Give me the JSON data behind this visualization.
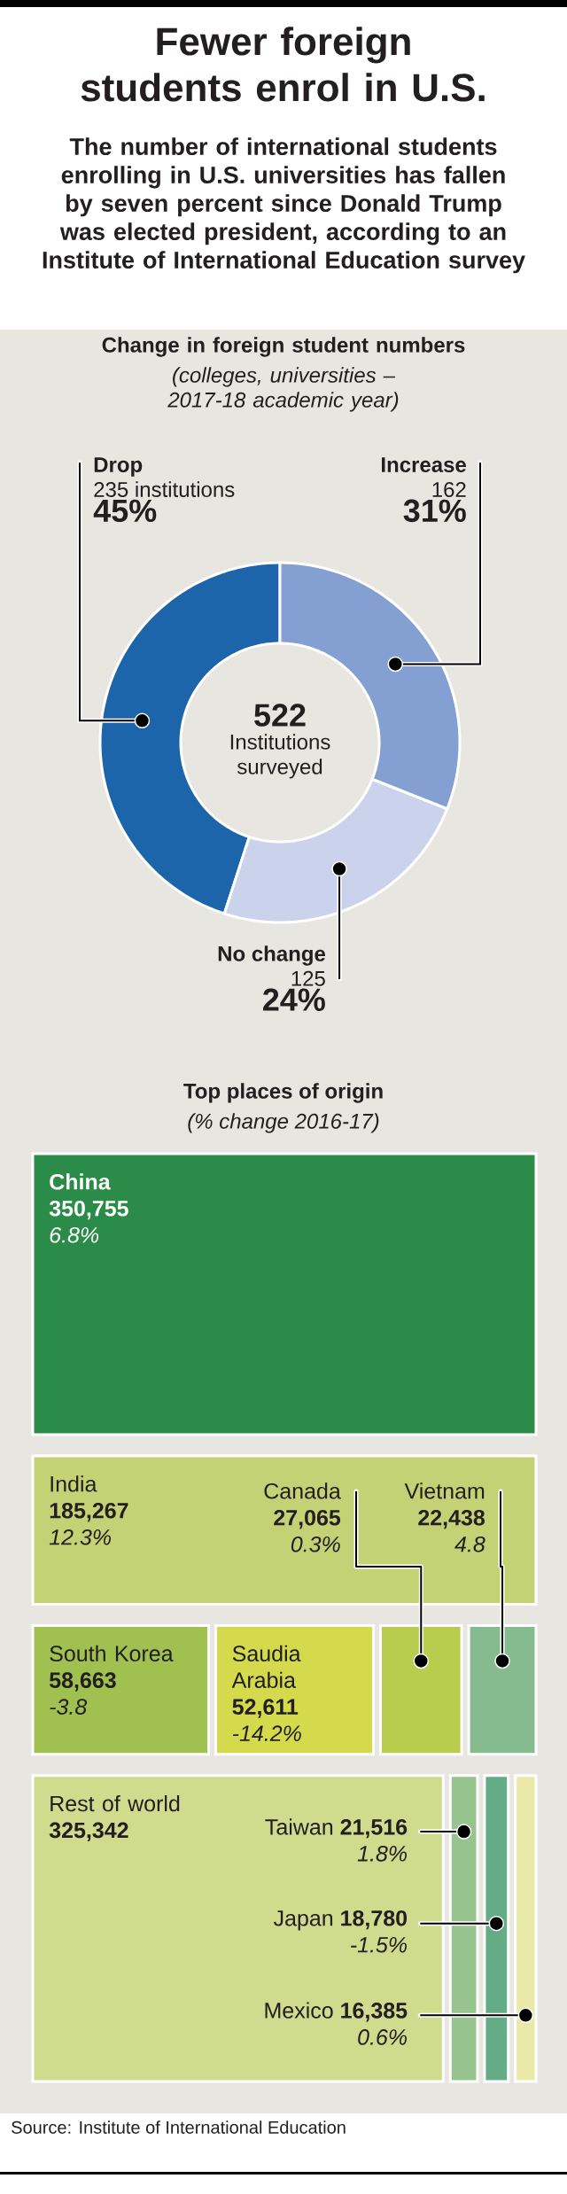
{
  "chart_data": [
    {
      "type": "other",
      "title": "Fewer foreign students enrol in U.S.",
      "subtitle": "The number of international students enrolling in U.S. universities has fallen by seven percent since Donald Trump was elected president, according to an Institute of International Education survey"
    },
    {
      "type": "donut",
      "title": "Change in foreign student numbers",
      "subtitle": "(colleges, universities – 2017-18 academic year)",
      "categories": [
        "Drop",
        "No change",
        "Increase"
      ],
      "values": [
        45,
        24,
        31
      ],
      "colors": [
        "#1c65ab",
        "#cbd3ec",
        "#84a0d2"
      ],
      "value_labels": [
        "45%",
        "24%",
        "31%"
      ],
      "annotations": [
        "235 institutions",
        "125",
        "162",
        "522",
        "Institutions surveyed"
      ]
    },
    {
      "type": "other",
      "title": "Top places of origin",
      "subtitle": "(% change 2016-17)",
      "categories": [
        "China",
        "India",
        "Canada",
        "Vietnam",
        "South Korea",
        "Saudia Arabia",
        "Rest of world",
        "Taiwan",
        "Japan",
        "Mexico"
      ],
      "series": [
        {
          "values": [
            350755,
            185267,
            27065,
            22438,
            58663,
            52611,
            325342,
            21516,
            18780,
            16385
          ],
          "colors": [
            "#2a8c48",
            "#c3d275",
            "#b8cc4e",
            "#86bb90",
            "#a0c050",
            "#d4da4c",
            "#cfdb8d",
            "#97c48e",
            "#63ac86",
            "#e9eaa8"
          ],
          "value_labels": [
            "350,755",
            "185,267",
            "27,065",
            "22,438",
            "58,663",
            "52,611",
            "325,342",
            "21,516",
            "18,780",
            "16,385"
          ]
        },
        {
          "values": [
            6.8,
            12.3,
            0.3,
            4.8,
            -3.8,
            -14.2,
            null,
            1.8,
            -1.5,
            0.6
          ],
          "value_labels": [
            "6.8%",
            "12.3%",
            "0.3%",
            "4.8",
            "-3.8",
            "-14.2%",
            null,
            "1.8%",
            "-1.5%",
            "0.6%"
          ]
        }
      ],
      "annotations": [
        "Source: Institute of International Education"
      ]
    }
  ]
}
